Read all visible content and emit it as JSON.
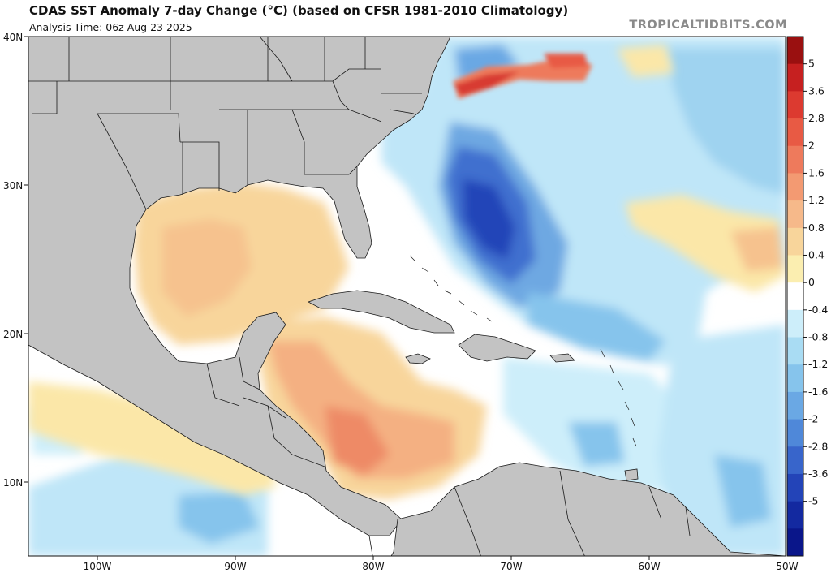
{
  "header": {
    "title": "CDAS SST Anomaly 7-day Change (°C) (based on CFSR 1981-2010 Climatology)",
    "analysis_time": "Analysis Time: 06z Aug 23 2025",
    "brand": "TROPICALTIDBITS.COM"
  },
  "map": {
    "lat_labels": [
      "40N",
      "30N",
      "20N",
      "10N"
    ],
    "lon_labels": [
      "100W",
      "90W",
      "80W",
      "70W",
      "60W",
      "50W"
    ]
  },
  "colorbar": {
    "labels": [
      "5",
      "3.6",
      "2.8",
      "2",
      "1.6",
      "1.2",
      "0.8",
      "0.4",
      "0",
      "-0.4",
      "-0.8",
      "-1.2",
      "-1.6",
      "-2",
      "-2.8",
      "-3.6",
      "-5"
    ],
    "colors": [
      "#9a1010",
      "#c62020",
      "#dc3a30",
      "#e85a44",
      "#ee7a5c",
      "#f39a72",
      "#f6b98a",
      "#f8d59b",
      "#fbeeb0",
      "#ffffff",
      "#cdeefa",
      "#a9dcf3",
      "#86c4ec",
      "#6aa8e4",
      "#4f88d9",
      "#3865cb",
      "#2344b8",
      "#1329a0",
      "#0a168a"
    ]
  }
}
